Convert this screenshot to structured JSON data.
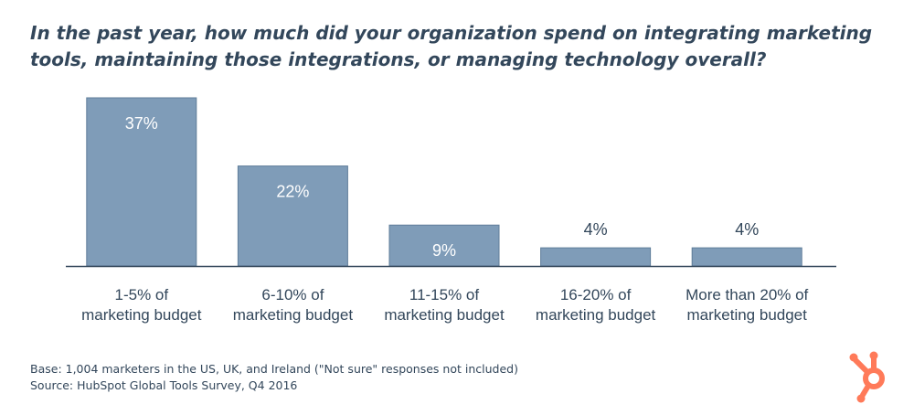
{
  "title": "In the past year, how much did your organization spend on integrating marketing tools, maintaining those integrations, or managing technology overall?",
  "footnotes": {
    "base": "Base: 1,004 marketers in the US, UK, and Ireland (\"Not sure\" responses not included)",
    "source": "Source: HubSpot Global Tools Survey, Q4 2016"
  },
  "logo": {
    "icon": "hubspot-sprocket-icon",
    "color": "#ff7a59"
  },
  "colors": {
    "bar": "#7f9cb8",
    "text": "#33475b",
    "axis": "#33475b"
  },
  "chart_data": {
    "type": "bar",
    "title": "In the past year, how much did your organization spend on integrating marketing tools, maintaining those integrations, or managing technology overall?",
    "xlabel": "",
    "ylabel": "",
    "categories": [
      [
        "1-5% of",
        "marketing budget"
      ],
      [
        "6-10% of",
        "marketing budget"
      ],
      [
        "11-15% of",
        "marketing budget"
      ],
      [
        "16-20% of",
        "marketing budget"
      ],
      [
        "More than 20% of",
        "marketing budget"
      ]
    ],
    "values": [
      37,
      22,
      9,
      4,
      4
    ],
    "labels": [
      "37%",
      "22%",
      "9%",
      "4%",
      "4%"
    ],
    "ylim": [
      0,
      37
    ],
    "grid": false,
    "legend": "none"
  }
}
